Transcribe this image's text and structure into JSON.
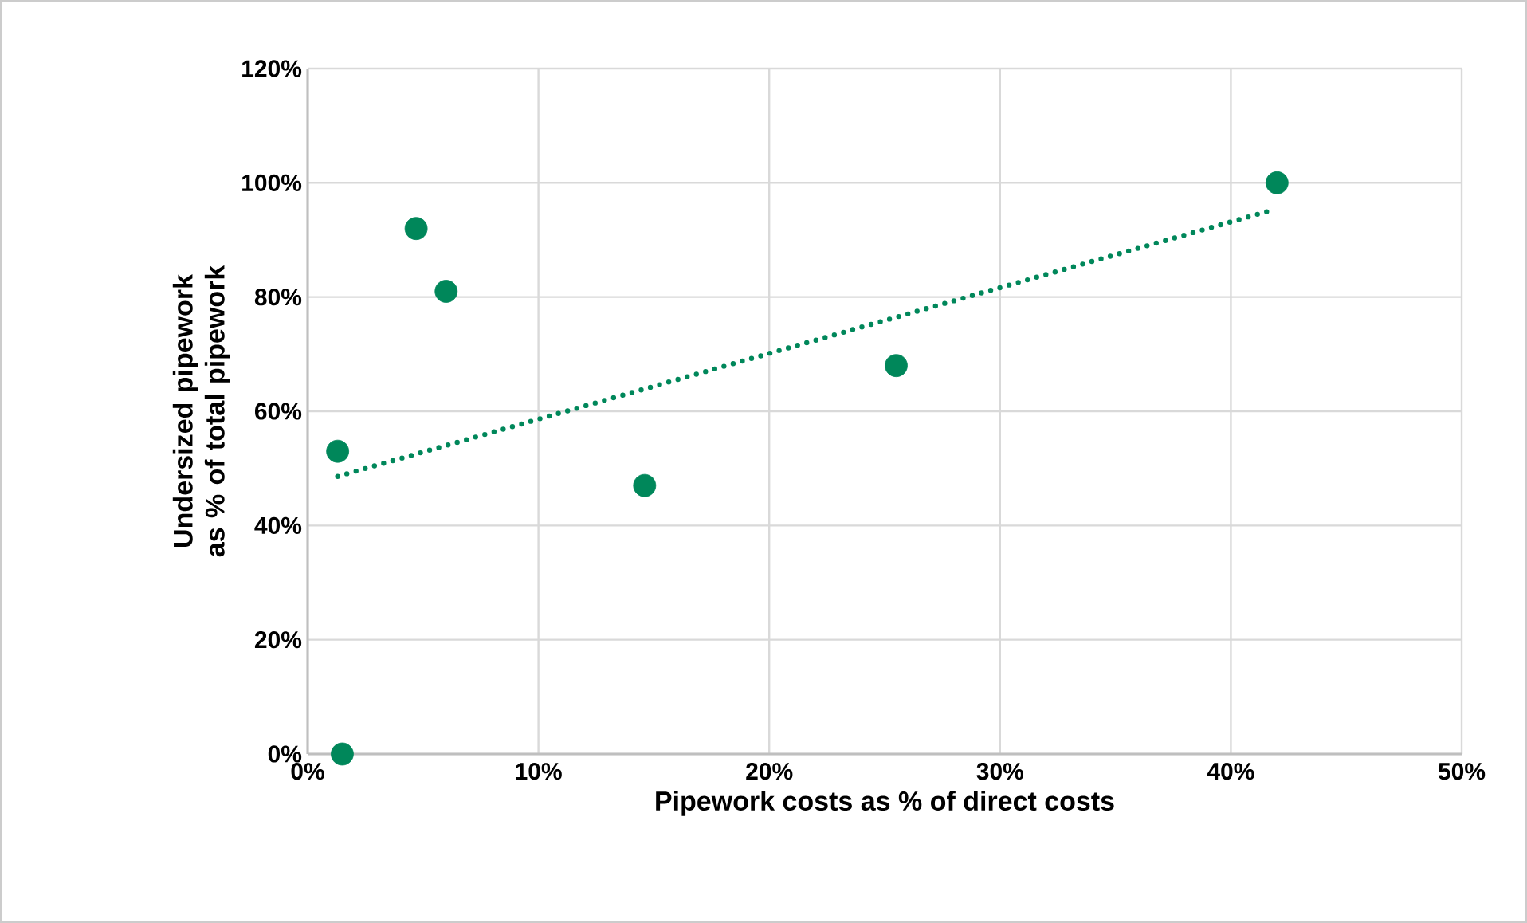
{
  "chart_data": {
    "type": "scatter",
    "xlabel": "Pipework costs as % of direct costs",
    "ylabel": "Undersized pipework as % of total pipework",
    "series": [
      {
        "color": "#00875a",
        "marker": "circle",
        "x": [
          1.5,
          1.3,
          4.7,
          6.0,
          14.6,
          25.5,
          42.0
        ],
        "values": [
          0,
          53,
          92,
          81,
          47,
          68,
          100
        ]
      },
      {
        "type": "line",
        "color": "#00875a",
        "line_style": "dotted",
        "x": [
          1.3,
          41.6
        ],
        "values": [
          48.6,
          95
        ]
      }
    ],
    "xlim": [
      0,
      50
    ],
    "ylim": [
      0,
      120
    ],
    "xticks": [
      {
        "value": 0,
        "label": "0%"
      },
      {
        "value": 10,
        "label": "10%"
      },
      {
        "value": 20,
        "label": "20%"
      },
      {
        "value": 30,
        "label": "30%"
      },
      {
        "value": 40,
        "label": "40%"
      },
      {
        "value": 50,
        "label": "50%"
      }
    ],
    "yticks": [
      {
        "value": 0,
        "label": "0%"
      },
      {
        "value": 20,
        "label": "20%"
      },
      {
        "value": 40,
        "label": "40%"
      },
      {
        "value": 60,
        "label": "60%"
      },
      {
        "value": 80,
        "label": "80%"
      },
      {
        "value": 100,
        "label": "100%"
      },
      {
        "value": 120,
        "label": "120%"
      }
    ],
    "grid": true
  }
}
